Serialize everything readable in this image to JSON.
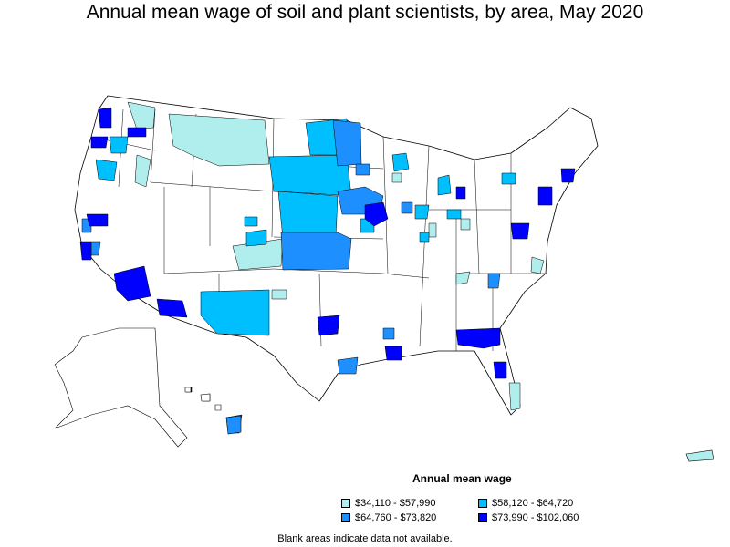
{
  "title": "Annual mean wage of soil and plant scientists, by area, May 2020",
  "legend": {
    "title": "Annual mean wage",
    "items": [
      {
        "label": "$34,110 - $57,990",
        "color": "#b0eeee"
      },
      {
        "label": "$58,120 - $64,720",
        "color": "#00bfff"
      },
      {
        "label": "$64,760 - $73,820",
        "color": "#1e8fff"
      },
      {
        "label": "$73,990 - $102,060",
        "color": "#0000ff"
      }
    ]
  },
  "note": "Blank areas indicate data not available.",
  "colors": {
    "border": "#000000",
    "blank": "#ffffff"
  }
}
